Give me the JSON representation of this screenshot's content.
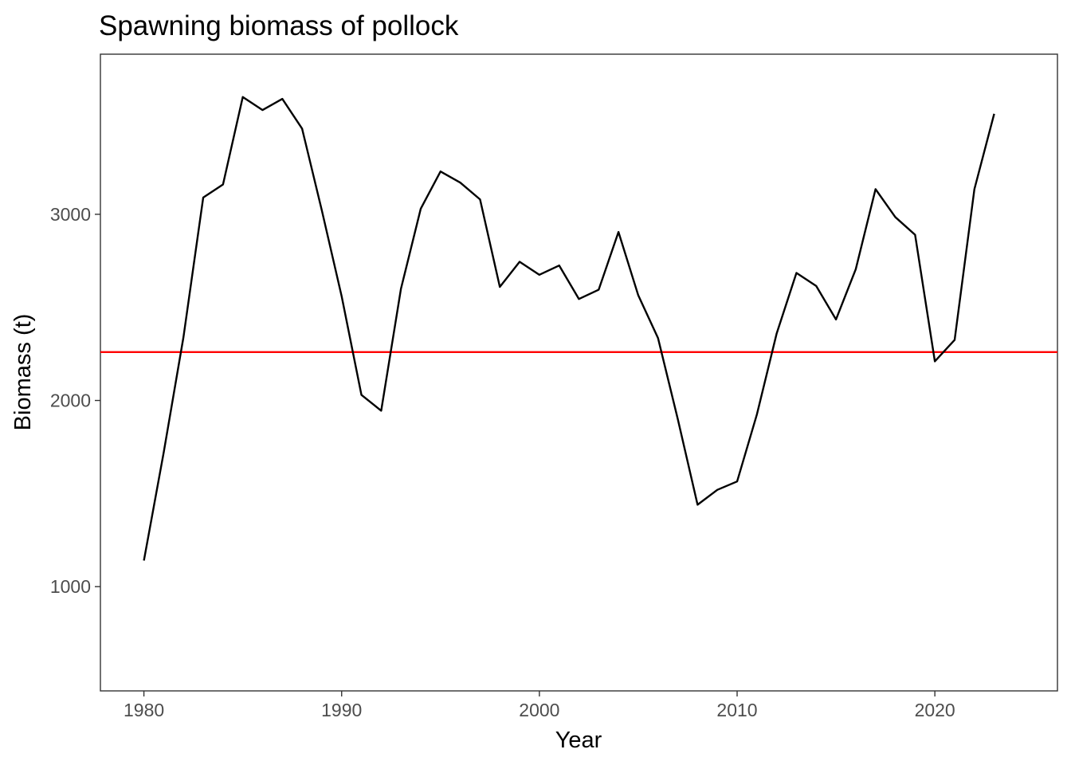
{
  "chart_data": {
    "type": "line",
    "title": "Spawning biomass of pollock",
    "xlabel": "Year",
    "ylabel": "Biomass (t)",
    "xlim": [
      1977.8,
      2026.2
    ],
    "ylim": [
      440,
      3860
    ],
    "x_ticks": [
      1980,
      1990,
      2000,
      2010,
      2020
    ],
    "y_ticks": [
      1000,
      2000,
      3000
    ],
    "grid": false,
    "series": [
      {
        "color": "#000000",
        "x": [
          1980,
          1981,
          1982,
          1983,
          1984,
          1985,
          1986,
          1987,
          1988,
          1989,
          1990,
          1991,
          1992,
          1993,
          1994,
          1995,
          1996,
          1997,
          1998,
          1999,
          2000,
          2001,
          2002,
          2003,
          2004,
          2005,
          2006,
          2007,
          2008,
          2009,
          2010,
          2011,
          2012,
          2013,
          2014,
          2015,
          2016,
          2017,
          2018,
          2019,
          2020,
          2021,
          2022,
          2023
        ],
        "y": [
          1140,
          1720,
          2340,
          3090,
          3160,
          3630,
          3560,
          3620,
          3460,
          3020,
          2560,
          2030,
          1945,
          2600,
          3030,
          3230,
          3170,
          3080,
          2610,
          2745,
          2675,
          2725,
          2545,
          2595,
          2905,
          2565,
          2335,
          1900,
          1440,
          1520,
          1565,
          1925,
          2360,
          2685,
          2615,
          2435,
          2705,
          3135,
          2985,
          2890,
          2210,
          2325,
          3135,
          3540
        ]
      }
    ],
    "reference_line": {
      "y": 2260,
      "color": "#ff0000"
    }
  }
}
